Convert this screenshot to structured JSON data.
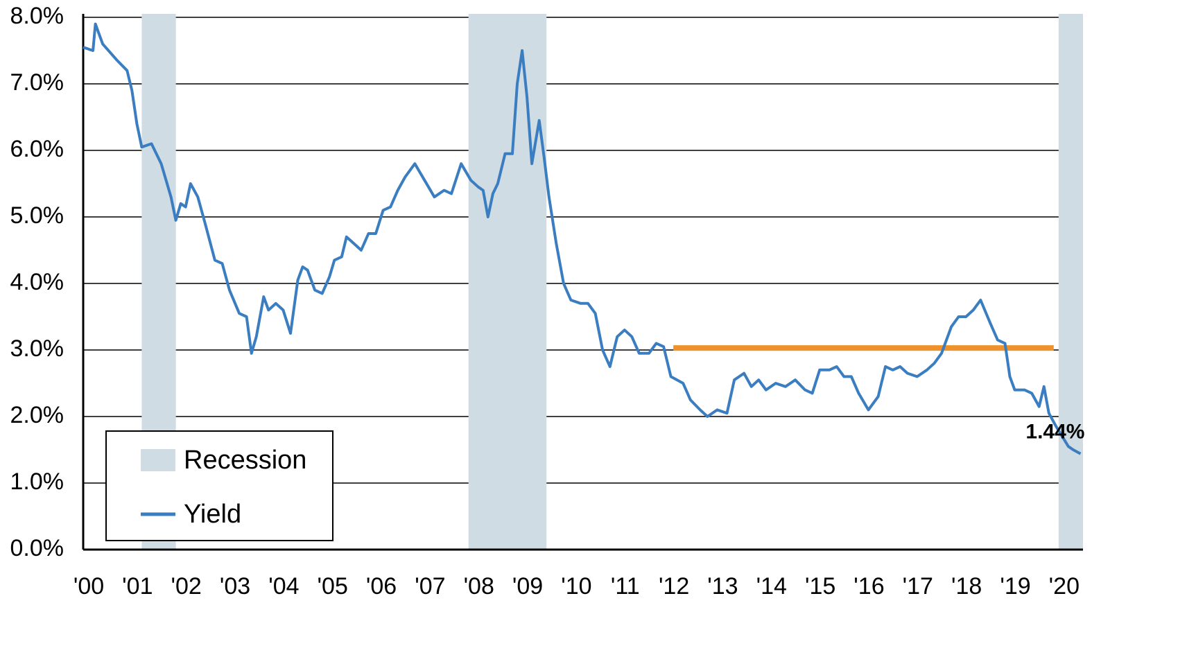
{
  "chart_data": {
    "type": "line",
    "xlim": [
      2000,
      2020.5
    ],
    "xticks": [
      {
        "value": 2000,
        "label": "'00"
      },
      {
        "value": 2001,
        "label": "'01"
      },
      {
        "value": 2002,
        "label": "'02"
      },
      {
        "value": 2003,
        "label": "'03"
      },
      {
        "value": 2004,
        "label": "'04"
      },
      {
        "value": 2005,
        "label": "'05"
      },
      {
        "value": 2006,
        "label": "'06"
      },
      {
        "value": 2007,
        "label": "'07"
      },
      {
        "value": 2008,
        "label": "'08"
      },
      {
        "value": 2009,
        "label": "'09"
      },
      {
        "value": 2010,
        "label": "'10"
      },
      {
        "value": 2011,
        "label": "'11"
      },
      {
        "value": 2012,
        "label": "'12"
      },
      {
        "value": 2013,
        "label": "'13"
      },
      {
        "value": 2014,
        "label": "'14"
      },
      {
        "value": 2015,
        "label": "'15"
      },
      {
        "value": 2016,
        "label": "'16"
      },
      {
        "value": 2017,
        "label": "'17"
      },
      {
        "value": 2018,
        "label": "'18"
      },
      {
        "value": 2019,
        "label": "'19"
      },
      {
        "value": 2020,
        "label": "'20"
      }
    ],
    "ylim": [
      0,
      8
    ],
    "yticks": [
      {
        "value": 0,
        "label": "0.0%"
      },
      {
        "value": 1,
        "label": "1.0%"
      },
      {
        "value": 2,
        "label": "2.0%"
      },
      {
        "value": 3,
        "label": "3.0%"
      },
      {
        "value": 4,
        "label": "4.0%"
      },
      {
        "value": 5,
        "label": "5.0%"
      },
      {
        "value": 6,
        "label": "6.0%"
      },
      {
        "value": 7,
        "label": "7.0%"
      },
      {
        "value": 8,
        "label": "8.0%"
      }
    ],
    "grid": true,
    "recession": {
      "name": "Recession",
      "color": "#d0dce4",
      "periods": [
        [
          2001.2,
          2001.9
        ],
        [
          2007.9,
          2009.5
        ],
        [
          2020.0,
          2020.5
        ]
      ]
    },
    "series": [
      {
        "name": "Yield",
        "color": "#3a7dc0",
        "x": [
          2000.0,
          2000.2,
          2000.25,
          2000.4,
          2000.7,
          2000.9,
          2001.0,
          2001.1,
          2001.2,
          2001.4,
          2001.6,
          2001.8,
          2001.9,
          2002.0,
          2002.1,
          2002.2,
          2002.35,
          2002.5,
          2002.7,
          2002.85,
          2003.0,
          2003.2,
          2003.35,
          2003.45,
          2003.55,
          2003.7,
          2003.8,
          2003.95,
          2004.1,
          2004.25,
          2004.4,
          2004.5,
          2004.6,
          2004.75,
          2004.9,
          2005.05,
          2005.15,
          2005.3,
          2005.4,
          2005.55,
          2005.7,
          2005.85,
          2006.0,
          2006.15,
          2006.3,
          2006.45,
          2006.6,
          2006.8,
          2007.0,
          2007.2,
          2007.4,
          2007.55,
          2007.75,
          2007.95,
          2008.1,
          2008.2,
          2008.3,
          2008.4,
          2008.5,
          2008.65,
          2008.8,
          2008.9,
          2009.0,
          2009.1,
          2009.2,
          2009.35,
          2009.45,
          2009.55,
          2009.7,
          2009.85,
          2010.0,
          2010.2,
          2010.35,
          2010.5,
          2010.65,
          2010.8,
          2010.95,
          2011.1,
          2011.25,
          2011.4,
          2011.6,
          2011.75,
          2011.9,
          2012.05,
          2012.3,
          2012.45,
          2012.65,
          2012.8,
          2013.0,
          2013.2,
          2013.35,
          2013.55,
          2013.7,
          2013.85,
          2014.0,
          2014.2,
          2014.4,
          2014.6,
          2014.8,
          2014.95,
          2015.1,
          2015.3,
          2015.45,
          2015.6,
          2015.75,
          2015.9,
          2016.1,
          2016.3,
          2016.45,
          2016.6,
          2016.75,
          2016.9,
          2017.1,
          2017.3,
          2017.45,
          2017.6,
          2017.8,
          2017.95,
          2018.1,
          2018.25,
          2018.4,
          2018.6,
          2018.75,
          2018.9,
          2019.0,
          2019.1,
          2019.3,
          2019.45,
          2019.6,
          2019.7,
          2019.8,
          2019.95,
          2020.2,
          2020.3,
          2020.45
        ],
        "values": [
          7.55,
          7.5,
          7.9,
          7.6,
          7.35,
          7.2,
          6.9,
          6.4,
          6.05,
          6.1,
          5.8,
          5.3,
          4.95,
          5.2,
          5.15,
          5.5,
          5.3,
          4.9,
          4.35,
          4.3,
          3.9,
          3.55,
          3.5,
          2.95,
          3.2,
          3.8,
          3.6,
          3.7,
          3.6,
          3.25,
          4.05,
          4.25,
          4.2,
          3.9,
          3.85,
          4.1,
          4.35,
          4.4,
          4.7,
          4.6,
          4.5,
          4.75,
          4.75,
          5.1,
          5.15,
          5.4,
          5.6,
          5.8,
          5.55,
          5.3,
          5.4,
          5.35,
          5.8,
          5.55,
          5.45,
          5.4,
          5.0,
          5.35,
          5.5,
          5.95,
          5.95,
          7.0,
          7.5,
          6.8,
          5.8,
          6.45,
          5.9,
          5.3,
          4.6,
          4.0,
          3.75,
          3.7,
          3.7,
          3.55,
          3.0,
          2.75,
          3.2,
          3.3,
          3.2,
          2.95,
          2.95,
          3.1,
          3.05,
          2.6,
          2.5,
          2.25,
          2.1,
          2.0,
          2.1,
          2.05,
          2.55,
          2.65,
          2.45,
          2.55,
          2.4,
          2.5,
          2.45,
          2.55,
          2.4,
          2.35,
          2.7,
          2.7,
          2.75,
          2.6,
          2.6,
          2.35,
          2.1,
          2.3,
          2.75,
          2.7,
          2.75,
          2.65,
          2.6,
          2.7,
          2.8,
          2.95,
          3.35,
          3.5,
          3.5,
          3.6,
          3.75,
          3.4,
          3.15,
          3.1,
          2.6,
          2.4,
          2.4,
          2.35,
          2.15,
          2.45,
          2.05,
          1.85,
          1.55,
          1.5,
          1.44
        ]
      }
    ],
    "reference_line": {
      "x": [
        2012.1,
        2019.9
      ],
      "value": 3.03,
      "color": "#f0922b"
    },
    "annotation": {
      "text": "1.44%",
      "x": 2020.45,
      "value": 1.44
    }
  }
}
